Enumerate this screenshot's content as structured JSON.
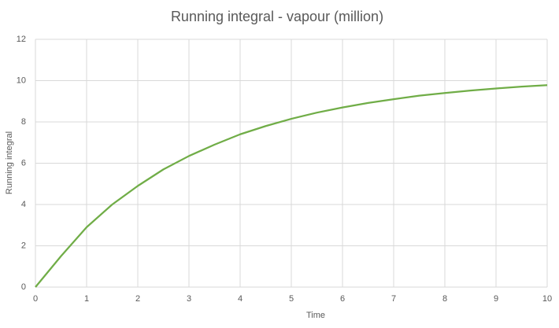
{
  "chart_data": {
    "type": "line",
    "title": "Running integral - vapour (million)",
    "x_label": "Time",
    "y_label": "Running integral",
    "x": [
      0,
      0.5,
      1,
      1.5,
      2,
      2.5,
      3,
      3.5,
      4,
      4.5,
      5,
      5.5,
      6,
      6.5,
      7,
      7.5,
      8,
      8.5,
      9,
      9.5,
      10
    ],
    "series": [
      {
        "color": "#70ad47",
        "values": [
          0,
          1.5,
          2.9,
          4.0,
          4.9,
          5.7,
          6.35,
          6.9,
          7.4,
          7.8,
          8.15,
          8.45,
          8.7,
          8.92,
          9.1,
          9.27,
          9.4,
          9.52,
          9.62,
          9.71,
          9.78
        ]
      }
    ],
    "xlim": [
      0,
      10
    ],
    "xticks": [
      0,
      1,
      2,
      3,
      4,
      5,
      6,
      7,
      8,
      9,
      10
    ],
    "ylim": [
      0,
      12
    ],
    "yticks": [
      0,
      2,
      4,
      6,
      8,
      10,
      12
    ],
    "grid": true
  }
}
